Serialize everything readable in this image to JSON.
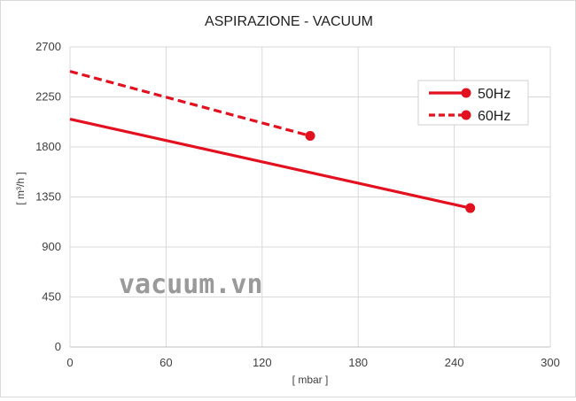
{
  "chart_data": {
    "type": "line",
    "title": "ASPIRAZIONE - VACUUM",
    "xlabel": "[ mbar ]",
    "ylabel": "[ m³/h ]",
    "xlim": [
      0,
      300
    ],
    "ylim": [
      0,
      2700
    ],
    "x_ticks": [
      0,
      60,
      120,
      180,
      240,
      300
    ],
    "y_ticks": [
      0,
      450,
      900,
      1350,
      1800,
      2250,
      2700
    ],
    "grid": true,
    "legend_position": "top-right",
    "series": [
      {
        "name": "50Hz",
        "style": "solid",
        "color": "#e3101f",
        "x": [
          0,
          250
        ],
        "y": [
          2050,
          1250
        ],
        "end_marker": true
      },
      {
        "name": "60Hz",
        "style": "dashed",
        "color": "#e3101f",
        "x": [
          0,
          150
        ],
        "y": [
          2480,
          1900
        ],
        "end_marker": true
      }
    ]
  },
  "watermark": "vacuum.vn"
}
